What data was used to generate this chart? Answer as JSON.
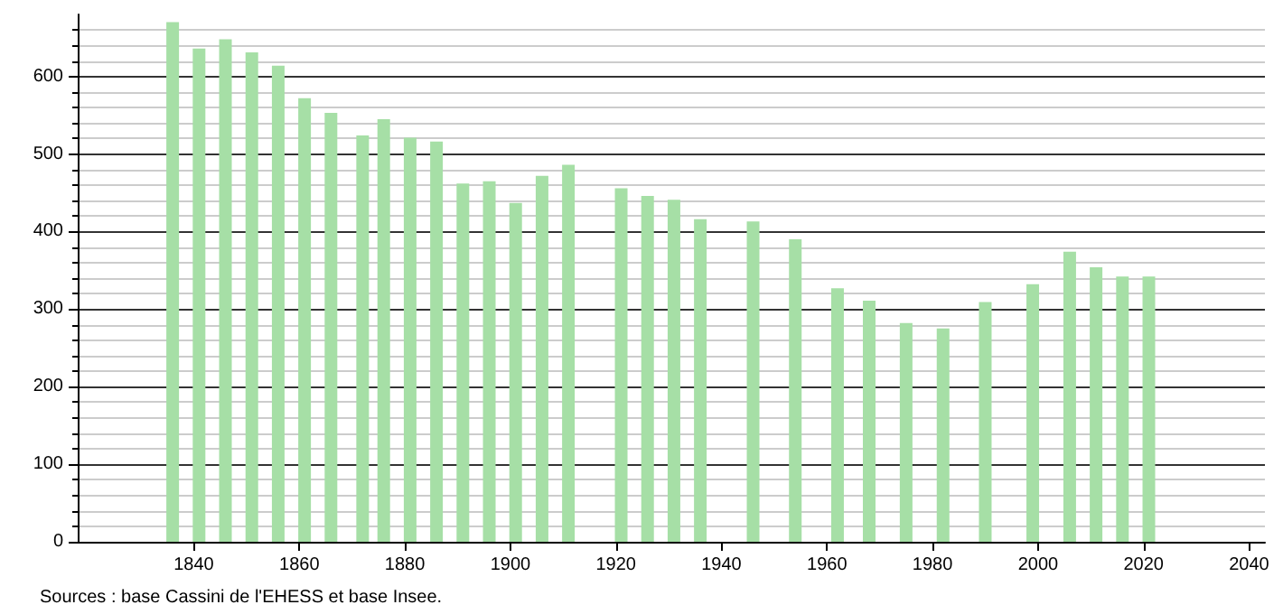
{
  "chart_data": {
    "type": "bar",
    "x": [
      1836,
      1841,
      1846,
      1851,
      1856,
      1861,
      1866,
      1872,
      1876,
      1881,
      1886,
      1891,
      1896,
      1901,
      1906,
      1911,
      1921,
      1926,
      1931,
      1936,
      1946,
      1954,
      1962,
      1968,
      1975,
      1982,
      1990,
      1999,
      2006,
      2011,
      2016,
      2021
    ],
    "values": [
      670,
      636,
      648,
      631,
      614,
      572,
      553,
      524,
      545,
      521,
      516,
      462,
      465,
      437,
      472,
      486,
      456,
      446,
      441,
      416,
      413,
      390,
      327,
      311,
      282,
      275,
      309,
      332,
      374,
      354,
      342,
      342
    ],
    "color": "#a6dfa6",
    "xlim": [
      1818,
      2043
    ],
    "xticks": [
      1840,
      1860,
      1880,
      1900,
      1920,
      1940,
      1960,
      1980,
      2000,
      2020,
      2040
    ],
    "ylim": [
      0,
      680
    ],
    "yticks": [
      0,
      100,
      200,
      300,
      400,
      500,
      600
    ],
    "grid": "y",
    "annotations": [
      "Sources : base Cassini de l'EHESS et base Insee."
    ]
  }
}
